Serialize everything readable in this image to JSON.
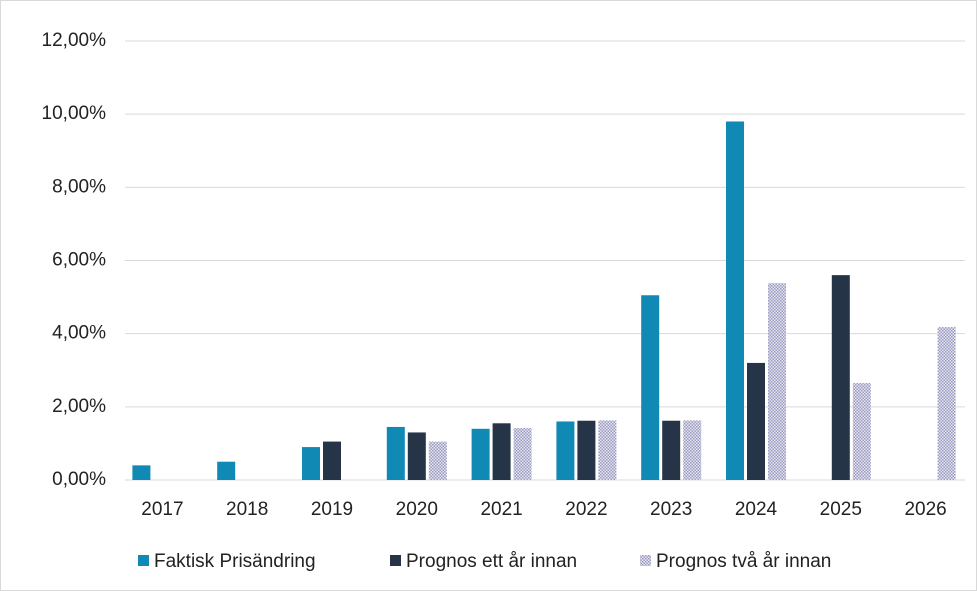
{
  "chart_data": {
    "type": "bar",
    "categories": [
      "2017",
      "2018",
      "2019",
      "2020",
      "2021",
      "2022",
      "2023",
      "2024",
      "2025",
      "2026"
    ],
    "series": [
      {
        "name": "Faktisk Prisändring",
        "color": "#1189b5",
        "values": [
          0.4,
          0.5,
          0.9,
          1.45,
          1.4,
          1.6,
          5.05,
          9.8,
          null,
          null
        ]
      },
      {
        "name": "Prognos ett år innan",
        "color": "#253446",
        "values": [
          null,
          null,
          1.05,
          1.3,
          1.55,
          1.62,
          1.62,
          3.2,
          5.6,
          null
        ]
      },
      {
        "name": "Prognos två år innan",
        "color": "#9a9ac0",
        "pattern": "dots",
        "values": [
          null,
          null,
          null,
          1.05,
          1.42,
          1.63,
          1.63,
          5.38,
          2.65,
          4.18
        ]
      }
    ],
    "ylim": [
      0,
      12
    ],
    "yticks": [
      {
        "value": 0,
        "label": "0,00%"
      },
      {
        "value": 2,
        "label": "2,00%"
      },
      {
        "value": 4,
        "label": "4,00%"
      },
      {
        "value": 6,
        "label": "6,00%"
      },
      {
        "value": 8,
        "label": "8,00%"
      },
      {
        "value": 10,
        "label": "10,00%"
      },
      {
        "value": 12,
        "label": "12,00%"
      }
    ],
    "grid": true,
    "legend": "bottom"
  }
}
